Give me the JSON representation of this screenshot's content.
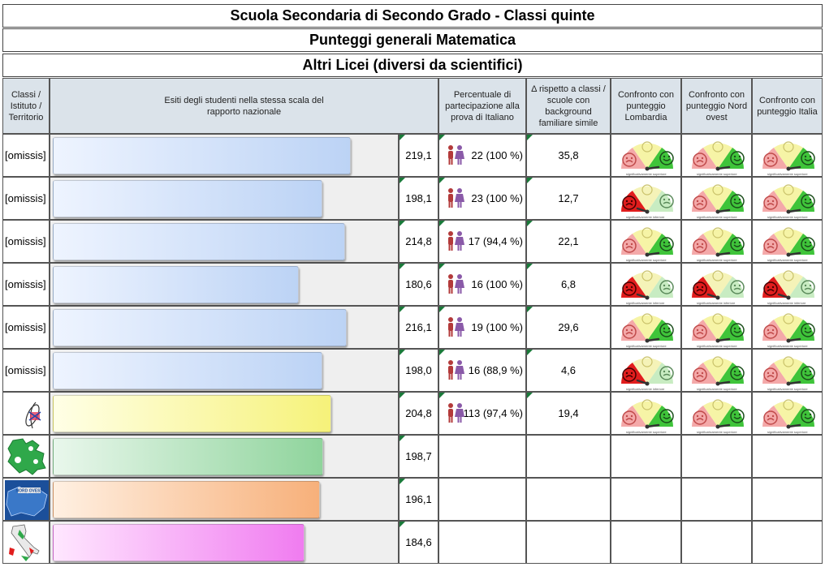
{
  "title1": "Scuola Secondaria di Secondo Grado - Classi quinte",
  "title2": "Punteggi generali Matematica",
  "title3": "Altri Licei (diversi da scientifici)",
  "headers": {
    "col1": "Classi / Istituto / Territorio",
    "col2": "Esiti degli studenti nella stessa scala del rapporto nazionale",
    "col3": "Percentuale di partecipazione alla prova di Italiano",
    "col4": "Δ rispetto a classi / scuole con background familiare simile",
    "col5": "Confronto con punteggio Lombardia",
    "col6": "Confronto con punteggio Nord ovest",
    "col7": "Confronto con punteggio Italia"
  },
  "gauge_legend": {
    "up": "significativamente superiore",
    "down": "significativamente inferiore"
  },
  "rows": [
    {
      "name": "[omissis]",
      "score": "219,1",
      "value": 219.1,
      "participation": "22 (100 %)",
      "delta": "35,8",
      "bar": "blue",
      "gauges": [
        "up",
        "up",
        "up"
      ]
    },
    {
      "name": "[omissis]",
      "score": "198,1",
      "value": 198.1,
      "participation": "23 (100 %)",
      "delta": "12,7",
      "bar": "blue",
      "gauges": [
        "down",
        "up",
        "up"
      ]
    },
    {
      "name": "[omissis]",
      "score": "214,8",
      "value": 214.8,
      "participation": "17 (94,4 %)",
      "delta": "22,1",
      "bar": "blue",
      "gauges": [
        "up",
        "up",
        "up"
      ]
    },
    {
      "name": "[omissis]",
      "score": "180,6",
      "value": 180.6,
      "participation": "16 (100 %)",
      "delta": "6,8",
      "bar": "blue",
      "gauges": [
        "down",
        "down",
        "down"
      ]
    },
    {
      "name": "[omissis]",
      "score": "216,1",
      "value": 216.1,
      "participation": "19 (100 %)",
      "delta": "29,6",
      "bar": "blue",
      "gauges": [
        "up",
        "up",
        "up"
      ]
    },
    {
      "name": "[omissis]",
      "score": "198,0",
      "value": 198.0,
      "participation": "16 (88,9 %)",
      "delta": "4,6",
      "bar": "blue",
      "gauges": [
        "down",
        "up",
        "up"
      ]
    },
    {
      "name": "",
      "logo": "school-logo",
      "score": "204,8",
      "value": 204.8,
      "participation": "113 (97,4 %)",
      "delta": "19,4",
      "bar": "yellow",
      "gauges": [
        "up",
        "up",
        "up"
      ]
    },
    {
      "name": "",
      "logo": "lombardia-map-icon",
      "score": "198,7",
      "value": 198.7,
      "participation": "",
      "delta": "",
      "bar": "green",
      "gauges": []
    },
    {
      "name": "",
      "logo": "nord-ovest-map-icon",
      "logo_text": "NORD OVEST",
      "score": "196,1",
      "value": 196.1,
      "participation": "",
      "delta": "",
      "bar": "orange",
      "gauges": []
    },
    {
      "name": "",
      "logo": "italia-map-icon",
      "score": "184,6",
      "value": 184.6,
      "participation": "",
      "delta": "",
      "bar": "pink",
      "gauges": []
    }
  ]
}
